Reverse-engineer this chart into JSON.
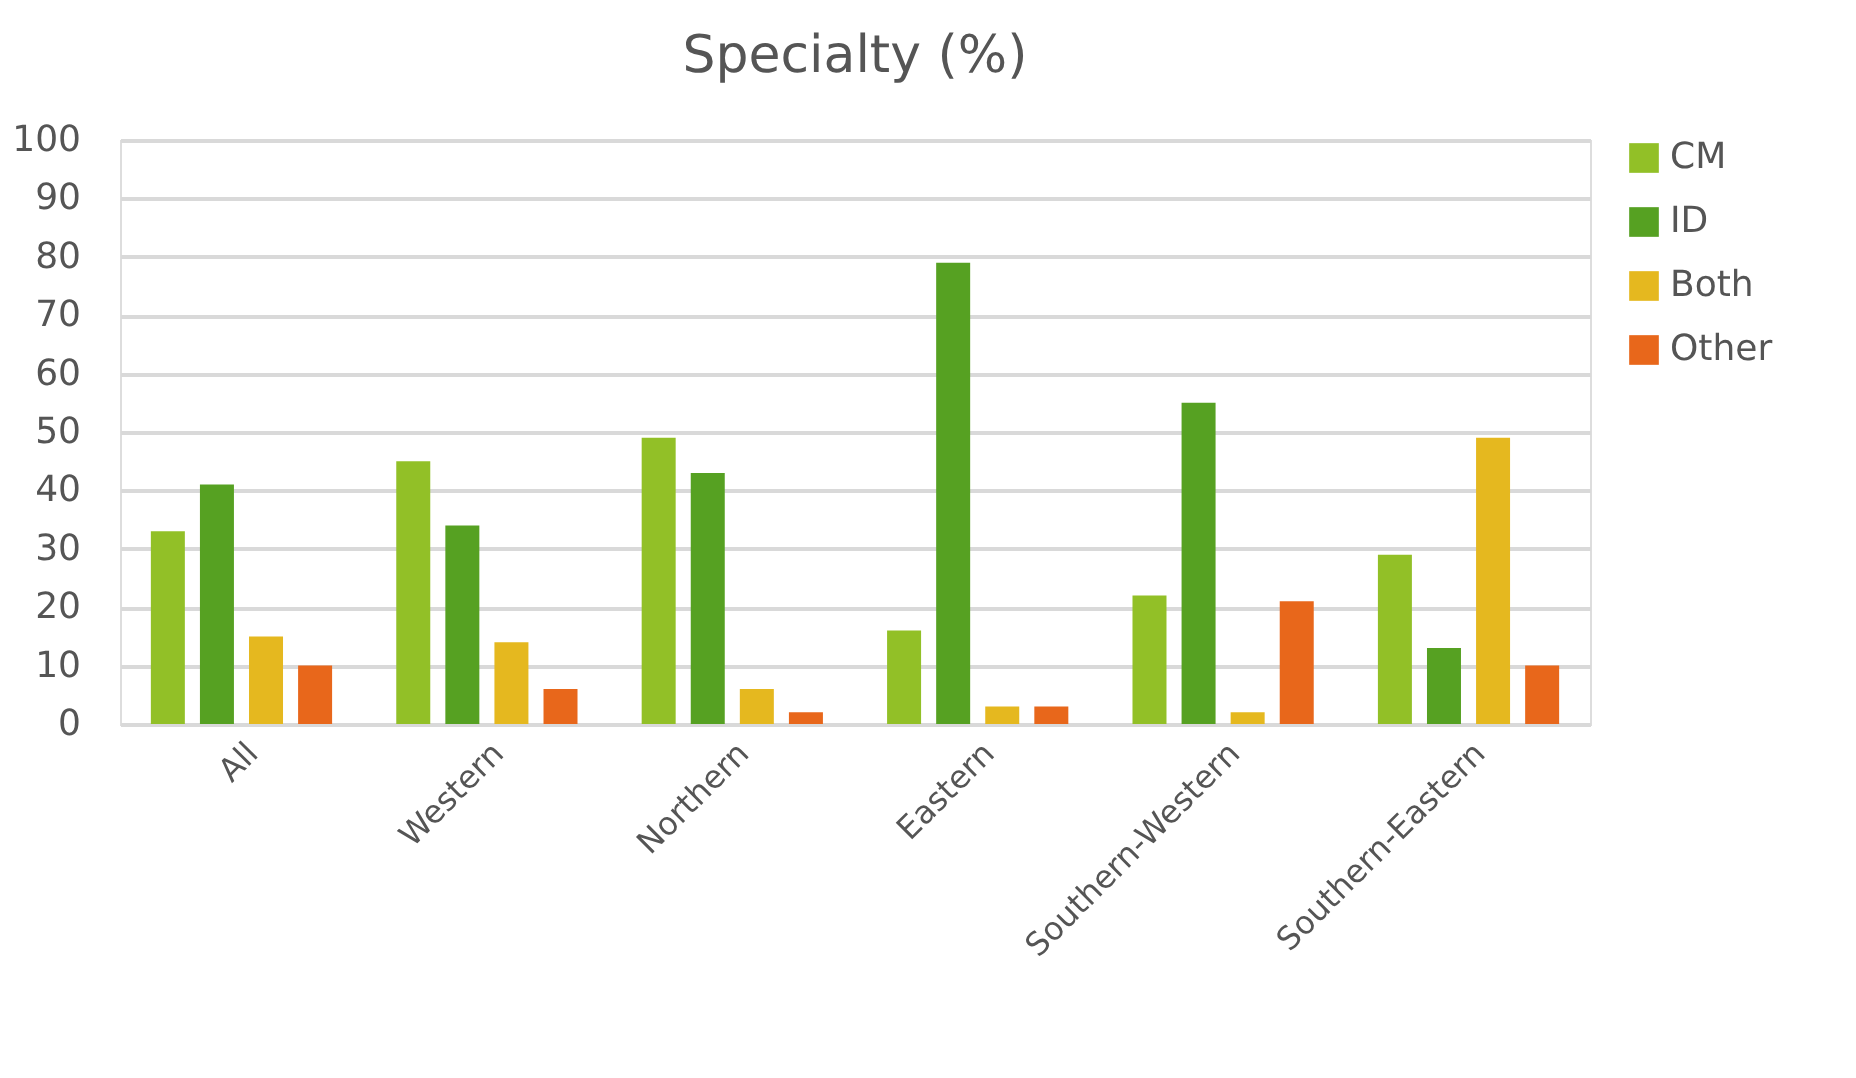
{
  "chart_data": {
    "type": "bar",
    "title": "Specialty (%)",
    "categories": [
      "All",
      "Western",
      "Northern",
      "Eastern",
      "Southern-Western",
      "Southern-Eastern"
    ],
    "series": [
      {
        "name": "CM",
        "color": "#92c027",
        "values": [
          33,
          45,
          49,
          16,
          22,
          29
        ]
      },
      {
        "name": "ID",
        "color": "#56a122",
        "values": [
          41,
          34,
          43,
          79,
          55,
          13
        ]
      },
      {
        "name": "Both",
        "color": "#e5b81f",
        "values": [
          15,
          14,
          6,
          3,
          2,
          49
        ]
      },
      {
        "name": "Other",
        "color": "#e8671b",
        "values": [
          10,
          6,
          2,
          3,
          21,
          10
        ]
      }
    ],
    "ylim": [
      0,
      100
    ],
    "yticks": [
      0,
      10,
      20,
      30,
      40,
      50,
      60,
      70,
      80,
      90,
      100
    ],
    "grid": "y",
    "legend": "right"
  }
}
